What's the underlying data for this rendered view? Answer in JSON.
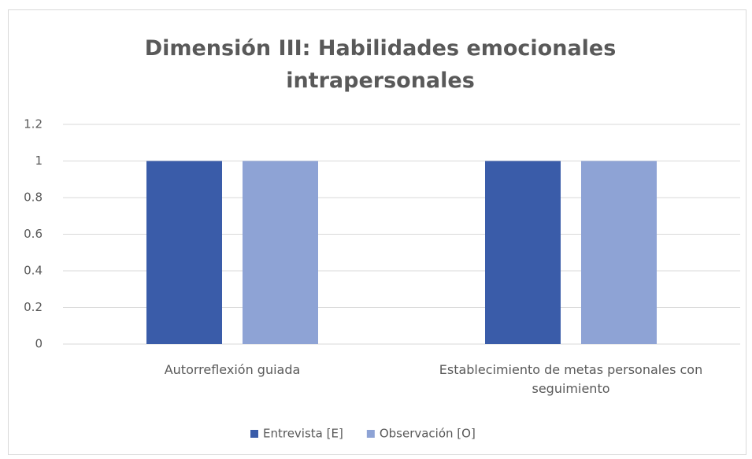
{
  "chart_data": {
    "type": "bar",
    "title": "Dimensión III: Habilidades emocionales intrapersonales",
    "categories": [
      "Autorreflexión guiada",
      "Establecimiento de metas personales con seguimiento"
    ],
    "series": [
      {
        "name": "Entrevista [E]",
        "color": "#3a5ca9",
        "values": [
          1,
          1
        ]
      },
      {
        "name": "Observación [O]",
        "color": "#8ea3d5",
        "values": [
          1,
          1
        ]
      }
    ],
    "ylim": [
      0,
      1.2
    ],
    "yticks": [
      0,
      0.2,
      0.4,
      0.6,
      0.8,
      1,
      1.2
    ],
    "grid": true,
    "legend": "bottom"
  }
}
